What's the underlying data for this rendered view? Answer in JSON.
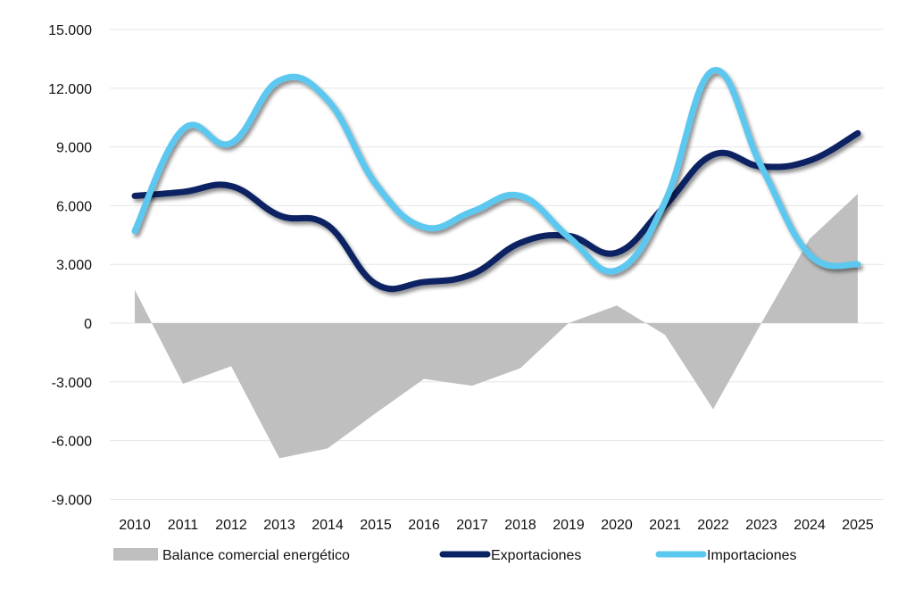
{
  "chart_data": {
    "type": "line",
    "title": "",
    "xlabel": "",
    "ylabel": "",
    "categories": [
      "2010",
      "2011",
      "2012",
      "2013",
      "2014",
      "2015",
      "2016",
      "2017",
      "2018",
      "2019",
      "2020",
      "2021",
      "2022",
      "2023",
      "2024",
      "2025"
    ],
    "ylim": [
      -9000,
      15000
    ],
    "yticks": [
      15000,
      12000,
      9000,
      6000,
      3000,
      0,
      -3000,
      -6000,
      -9000
    ],
    "ytick_labels": [
      "15.000",
      "12.000",
      "9.000",
      "6.000",
      "3.000",
      "0",
      "-3.000",
      "-6.000",
      "-9.000"
    ],
    "grid": true,
    "legend_position": "bottom",
    "series": [
      {
        "name": "Balance comercial energético",
        "kind": "area",
        "color": "#bfbfbf",
        "values": [
          1700,
          -3100,
          -2200,
          -6900,
          -6400,
          -4600,
          -2850,
          -3200,
          -2300,
          0,
          900,
          -600,
          -4400,
          0,
          4300,
          6600
        ]
      },
      {
        "name": "Exportaciones",
        "kind": "line",
        "color": "#0a2463",
        "values": [
          6500,
          6700,
          7000,
          5500,
          5000,
          2000,
          2100,
          2500,
          4100,
          4450,
          3600,
          6000,
          8600,
          8000,
          8300,
          9700
        ]
      },
      {
        "name": "Importaciones",
        "kind": "line",
        "color": "#5bc8f0",
        "values": [
          4700,
          9900,
          9200,
          12400,
          11400,
          7100,
          4900,
          5700,
          6500,
          4400,
          2700,
          6200,
          12900,
          8000,
          3500,
          3000
        ]
      }
    ]
  }
}
